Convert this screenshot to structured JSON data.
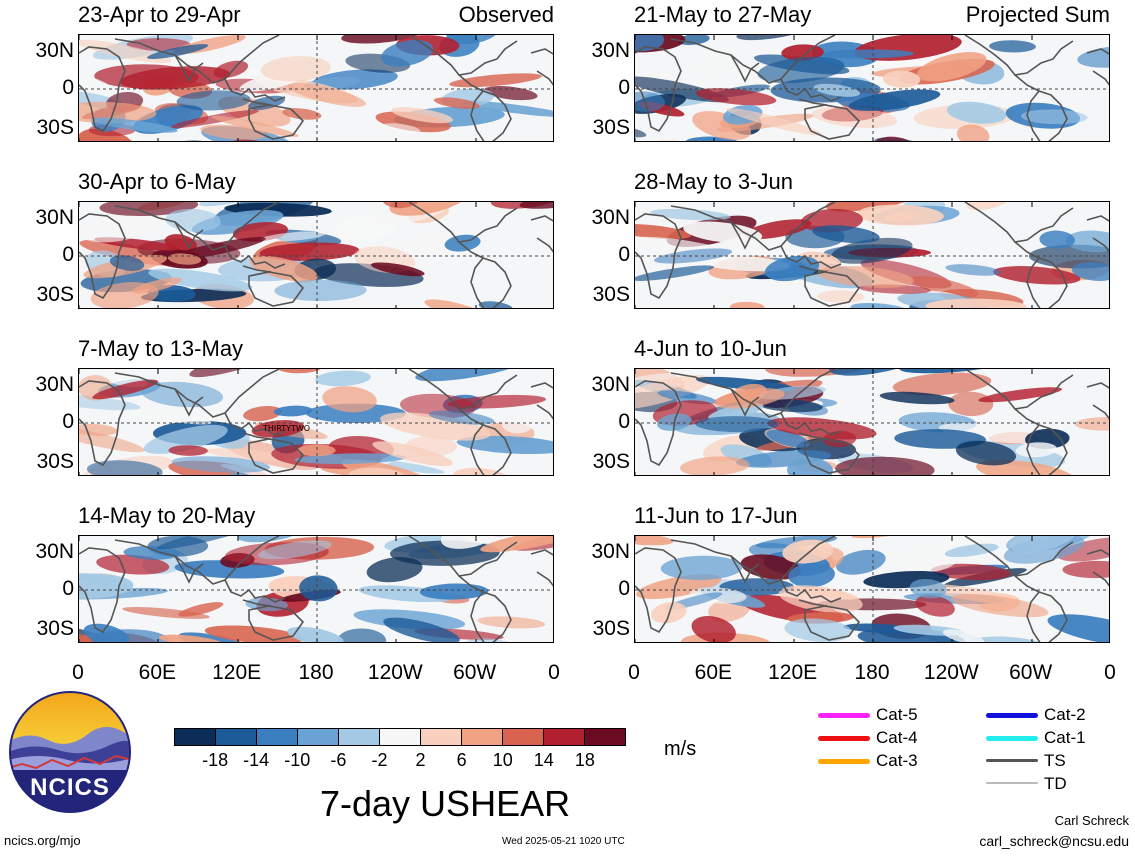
{
  "panels": [
    {
      "title": "23-Apr to 29-Apr",
      "tag": "Observed",
      "column": "left",
      "row": 0,
      "seed": 11,
      "storm_label": ""
    },
    {
      "title": "30-Apr to 6-May",
      "tag": "",
      "column": "left",
      "row": 1,
      "seed": 23,
      "storm_label": ""
    },
    {
      "title": "7-May to 13-May",
      "tag": "",
      "column": "left",
      "row": 2,
      "seed": 37,
      "storm_label": "THIRTYTWO"
    },
    {
      "title": "14-May to 20-May",
      "tag": "",
      "column": "left",
      "row": 3,
      "seed": 41,
      "storm_label": ""
    },
    {
      "title": "21-May to 27-May",
      "tag": "Projected Sum",
      "column": "right",
      "row": 0,
      "seed": 53,
      "storm_label": ""
    },
    {
      "title": "28-May to 3-Jun",
      "tag": "",
      "column": "right",
      "row": 1,
      "seed": 67,
      "storm_label": ""
    },
    {
      "title": "4-Jun to 10-Jun",
      "tag": "",
      "column": "right",
      "row": 2,
      "seed": 71,
      "storm_label": ""
    },
    {
      "title": "11-Jun to 17-Jun",
      "tag": "",
      "column": "right",
      "row": 3,
      "seed": 89,
      "storm_label": ""
    }
  ],
  "lat_ticks": [
    "30N",
    "0",
    "30S"
  ],
  "lon_ticks": [
    "0",
    "60E",
    "120E",
    "180",
    "120W",
    "60W",
    "0"
  ],
  "colorbar": {
    "labels": [
      "-18",
      "-14",
      "-10",
      "-6",
      "-2",
      "2",
      "6",
      "10",
      "14",
      "18"
    ],
    "colors": [
      "#0b2d57",
      "#1b5a97",
      "#3b7fc0",
      "#6aa3d3",
      "#a3c9e5",
      "#f7f7f7",
      "#f9d0bd",
      "#f0a283",
      "#d8644f",
      "#b2202f",
      "#6a0b21"
    ],
    "unit": "m/s"
  },
  "legend": [
    {
      "label": "Cat-5",
      "color": "#ff22ff"
    },
    {
      "label": "Cat-4",
      "color": "#ee1111"
    },
    {
      "label": "Cat-3",
      "color": "#ffa500"
    },
    {
      "label": "Cat-2",
      "color": "#1111dd"
    },
    {
      "label": "Cat-1",
      "color": "#22eeee"
    },
    {
      "label": "TS",
      "color": "#555555"
    },
    {
      "label": "TD",
      "color": "#bbbbbb"
    }
  ],
  "logo_text": "NCICS",
  "main_title": "7-day USHEAR",
  "footer": {
    "url": "ncics.org/mjo",
    "timestamp": "Wed 2025-05-21 1020 UTC",
    "author": "Carl Schreck",
    "email": "carl_schreck@ncsu.edu"
  }
}
